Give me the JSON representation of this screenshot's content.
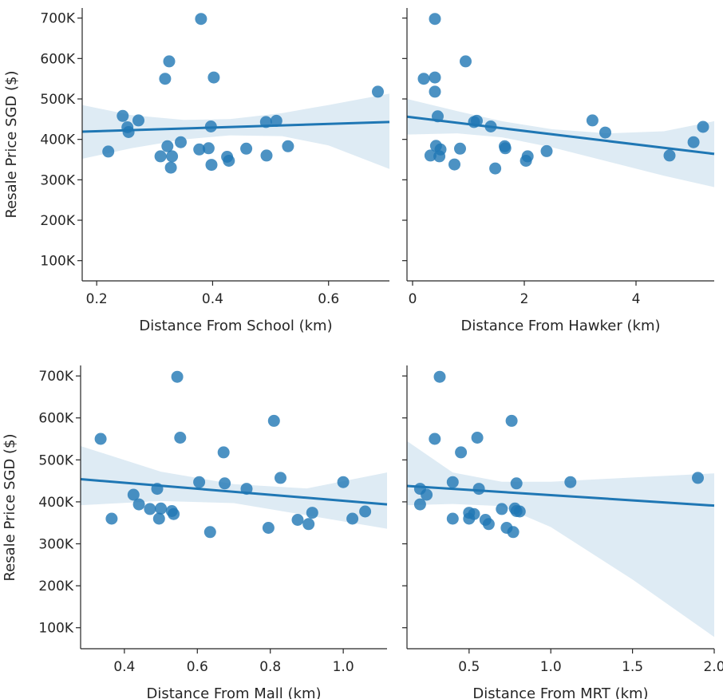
{
  "chart_data": [
    {
      "type": "scatter",
      "id": "school",
      "xlabel": "Distance From School (km)",
      "ylabel": "Resale Price SGD ($)",
      "xlim": [
        0.175,
        0.705
      ],
      "ylim": [
        50000,
        725000
      ],
      "xticks": [
        0.2,
        0.4,
        0.6
      ],
      "xtick_labels": [
        "0.2",
        "0.4",
        "0.6"
      ],
      "yticks": [
        100000,
        200000,
        300000,
        400000,
        500000,
        600000,
        700000
      ],
      "ytick_labels": [
        "100K",
        "200K",
        "300K",
        "400K",
        "500K",
        "600K",
        "700K"
      ],
      "points": [
        [
          0.22,
          370000
        ],
        [
          0.245,
          458000
        ],
        [
          0.253,
          430000
        ],
        [
          0.255,
          418000
        ],
        [
          0.272,
          447000
        ],
        [
          0.31,
          358000
        ],
        [
          0.318,
          550000
        ],
        [
          0.322,
          383000
        ],
        [
          0.325,
          593000
        ],
        [
          0.328,
          330000
        ],
        [
          0.33,
          358000
        ],
        [
          0.345,
          393000
        ],
        [
          0.377,
          375000
        ],
        [
          0.38,
          698000
        ],
        [
          0.393,
          378000
        ],
        [
          0.397,
          432000
        ],
        [
          0.398,
          337000
        ],
        [
          0.402,
          553000
        ],
        [
          0.425,
          357000
        ],
        [
          0.428,
          347000
        ],
        [
          0.458,
          377000
        ],
        [
          0.492,
          443000
        ],
        [
          0.493,
          360000
        ],
        [
          0.51,
          446000
        ],
        [
          0.53,
          383000
        ],
        [
          0.685,
          518000
        ]
      ],
      "fit": {
        "x": [
          0.175,
          0.705
        ],
        "y": [
          419000,
          443000
        ]
      },
      "ci_upper": [
        [
          0.175,
          485000
        ],
        [
          0.26,
          460000
        ],
        [
          0.35,
          448000
        ],
        [
          0.43,
          450000
        ],
        [
          0.52,
          465000
        ],
        [
          0.6,
          485000
        ],
        [
          0.705,
          513000
        ]
      ],
      "ci_lower": [
        [
          0.175,
          352000
        ],
        [
          0.26,
          378000
        ],
        [
          0.35,
          400000
        ],
        [
          0.43,
          410000
        ],
        [
          0.52,
          408000
        ],
        [
          0.6,
          385000
        ],
        [
          0.705,
          327000
        ]
      ],
      "grid": false
    },
    {
      "type": "scatter",
      "id": "hawker",
      "xlabel": "Distance From Hawker (km)",
      "ylabel": "",
      "xlim": [
        -0.1,
        5.4
      ],
      "ylim": [
        50000,
        725000
      ],
      "xticks": [
        0,
        2,
        4
      ],
      "xtick_labels": [
        "0",
        "2",
        "4"
      ],
      "yticks": [
        100000,
        200000,
        300000,
        400000,
        500000,
        600000,
        700000
      ],
      "ytick_labels": [],
      "points": [
        [
          0.2,
          550000
        ],
        [
          0.32,
          360000
        ],
        [
          0.4,
          698000
        ],
        [
          0.4,
          553000
        ],
        [
          0.4,
          518000
        ],
        [
          0.42,
          384000
        ],
        [
          0.45,
          457000
        ],
        [
          0.48,
          358000
        ],
        [
          0.5,
          375000
        ],
        [
          0.95,
          593000
        ],
        [
          0.75,
          338000
        ],
        [
          0.85,
          377000
        ],
        [
          1.1,
          443000
        ],
        [
          1.15,
          446000
        ],
        [
          1.4,
          432000
        ],
        [
          1.48,
          328000
        ],
        [
          1.65,
          383000
        ],
        [
          1.66,
          378000
        ],
        [
          2.03,
          347000
        ],
        [
          2.06,
          358000
        ],
        [
          2.4,
          371000
        ],
        [
          3.22,
          447000
        ],
        [
          3.45,
          417000
        ],
        [
          4.6,
          360000
        ],
        [
          5.03,
          393000
        ],
        [
          5.2,
          431000
        ]
      ],
      "fit": {
        "x": [
          -0.1,
          5.4
        ],
        "y": [
          456000,
          364000
        ]
      },
      "ci_upper": [
        [
          -0.1,
          500000
        ],
        [
          0.8,
          470000
        ],
        [
          1.6,
          445000
        ],
        [
          2.5,
          425000
        ],
        [
          3.5,
          415000
        ],
        [
          4.5,
          420000
        ],
        [
          5.4,
          445000
        ]
      ],
      "ci_lower": [
        [
          -0.1,
          412000
        ],
        [
          0.8,
          415000
        ],
        [
          1.6,
          405000
        ],
        [
          2.5,
          380000
        ],
        [
          3.5,
          345000
        ],
        [
          4.5,
          310000
        ],
        [
          5.4,
          282000
        ]
      ],
      "grid": false
    },
    {
      "type": "scatter",
      "id": "mall",
      "xlabel": "Distance From Mall (km)",
      "ylabel": "Resale Price SGD ($)",
      "xlim": [
        0.28,
        1.12
      ],
      "ylim": [
        50000,
        725000
      ],
      "xticks": [
        0.4,
        0.6,
        0.8,
        1.0
      ],
      "xtick_labels": [
        "0.4",
        "0.6",
        "0.8",
        "1.0"
      ],
      "yticks": [
        100000,
        200000,
        300000,
        400000,
        500000,
        600000,
        700000
      ],
      "ytick_labels": [
        "100K",
        "200K",
        "300K",
        "400K",
        "500K",
        "600K",
        "700K"
      ],
      "points": [
        [
          0.335,
          550000
        ],
        [
          0.365,
          360000
        ],
        [
          0.425,
          417000
        ],
        [
          0.44,
          394000
        ],
        [
          0.47,
          383000
        ],
        [
          0.49,
          431000
        ],
        [
          0.495,
          360000
        ],
        [
          0.5,
          384000
        ],
        [
          0.53,
          378000
        ],
        [
          0.535,
          371000
        ],
        [
          0.545,
          698000
        ],
        [
          0.553,
          553000
        ],
        [
          0.605,
          447000
        ],
        [
          0.635,
          328000
        ],
        [
          0.672,
          518000
        ],
        [
          0.675,
          444000
        ],
        [
          0.735,
          431000
        ],
        [
          0.795,
          338000
        ],
        [
          0.81,
          593000
        ],
        [
          0.828,
          457000
        ],
        [
          0.875,
          357000
        ],
        [
          0.905,
          347000
        ],
        [
          0.915,
          374000
        ],
        [
          1.0,
          447000
        ],
        [
          1.025,
          360000
        ],
        [
          1.06,
          377000
        ]
      ],
      "fit": {
        "x": [
          0.28,
          1.12
        ],
        "y": [
          454000,
          394000
        ]
      },
      "ci_upper": [
        [
          0.28,
          533000
        ],
        [
          0.5,
          472000
        ],
        [
          0.7,
          442000
        ],
        [
          0.9,
          432000
        ],
        [
          1.12,
          470000
        ]
      ],
      "ci_lower": [
        [
          0.28,
          392000
        ],
        [
          0.5,
          402000
        ],
        [
          0.7,
          397000
        ],
        [
          0.9,
          368000
        ],
        [
          1.12,
          336000
        ]
      ],
      "grid": false
    },
    {
      "type": "scatter",
      "id": "mrt",
      "xlabel": "Distance From MRT (km)",
      "ylabel": "",
      "xlim": [
        0.12,
        2.0
      ],
      "ylim": [
        50000,
        725000
      ],
      "xticks": [
        0.5,
        1.0,
        1.5,
        2.0
      ],
      "xtick_labels": [
        "0.5",
        "1.0",
        "1.5",
        "2.0"
      ],
      "yticks": [
        100000,
        200000,
        300000,
        400000,
        500000,
        600000,
        700000
      ],
      "ytick_labels": [],
      "points": [
        [
          0.2,
          431000
        ],
        [
          0.2,
          394000
        ],
        [
          0.24,
          417000
        ],
        [
          0.29,
          550000
        ],
        [
          0.32,
          698000
        ],
        [
          0.4,
          447000
        ],
        [
          0.4,
          360000
        ],
        [
          0.45,
          518000
        ],
        [
          0.5,
          360000
        ],
        [
          0.5,
          374000
        ],
        [
          0.53,
          371000
        ],
        [
          0.55,
          553000
        ],
        [
          0.56,
          431000
        ],
        [
          0.6,
          357000
        ],
        [
          0.62,
          347000
        ],
        [
          0.7,
          383000
        ],
        [
          0.73,
          338000
        ],
        [
          0.76,
          593000
        ],
        [
          0.77,
          328000
        ],
        [
          0.78,
          384000
        ],
        [
          0.79,
          444000
        ],
        [
          0.79,
          378000
        ],
        [
          0.81,
          377000
        ],
        [
          1.12,
          447000
        ],
        [
          1.9,
          457000
        ]
      ],
      "fit": {
        "x": [
          0.12,
          2.0
        ],
        "y": [
          438000,
          391000
        ]
      },
      "ci_upper": [
        [
          0.12,
          545000
        ],
        [
          0.4,
          470000
        ],
        [
          0.7,
          448000
        ],
        [
          1.0,
          448000
        ],
        [
          1.5,
          458000
        ],
        [
          2.0,
          468000
        ]
      ],
      "ci_lower": [
        [
          0.12,
          392000
        ],
        [
          0.4,
          395000
        ],
        [
          0.7,
          390000
        ],
        [
          1.0,
          340000
        ],
        [
          1.5,
          215000
        ],
        [
          2.0,
          78000
        ]
      ],
      "grid": false
    }
  ],
  "colors": {
    "points": "#1f77b4",
    "fit_line": "#1f77b4",
    "ci_band": "#1f77b4",
    "axis": "#262626",
    "text": "#262626"
  }
}
